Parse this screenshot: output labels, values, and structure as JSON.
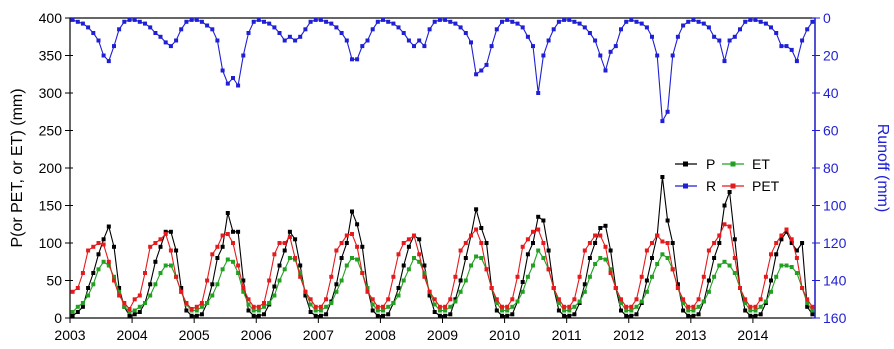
{
  "chart_data": {
    "type": "line",
    "x_start": "2003-01",
    "x_ticks": [
      "2003",
      "2004",
      "2005",
      "2006",
      "2007",
      "2008",
      "2009",
      "2010",
      "2011",
      "2012",
      "2013",
      "2014"
    ],
    "xlim": [
      "2003-01",
      "2014-12"
    ],
    "ylabel_left": "P(or PET, or ET) (mm)",
    "ylabel_right": "Runoff (mm)",
    "ylim_left": [
      0,
      400
    ],
    "yticks_left": [
      "0",
      "50",
      "100",
      "150",
      "200",
      "250",
      "300",
      "350",
      "400"
    ],
    "ylim_right": [
      160,
      0
    ],
    "yticks_right": [
      "0",
      "20",
      "40",
      "60",
      "80",
      "100",
      "120",
      "140",
      "160"
    ],
    "legend_position": "right-middle",
    "colors": {
      "axis_right": "#1f1fd6"
    },
    "series": [
      {
        "name": "P",
        "axis": "left",
        "color": "#000000",
        "values": [
          3,
          8,
          15,
          40,
          60,
          85,
          105,
          122,
          95,
          40,
          15,
          3,
          5,
          8,
          20,
          45,
          75,
          95,
          115,
          115,
          90,
          40,
          10,
          3,
          3,
          5,
          20,
          45,
          80,
          95,
          140,
          115,
          115,
          50,
          10,
          3,
          3,
          5,
          18,
          42,
          70,
          90,
          115,
          105,
          70,
          30,
          8,
          3,
          3,
          5,
          22,
          45,
          80,
          100,
          142,
          125,
          95,
          40,
          10,
          3,
          3,
          5,
          20,
          40,
          70,
          95,
          110,
          105,
          70,
          30,
          8,
          3,
          3,
          5,
          25,
          50,
          80,
          110,
          145,
          120,
          100,
          40,
          10,
          3,
          3,
          5,
          22,
          48,
          85,
          100,
          135,
          130,
          90,
          40,
          10,
          3,
          3,
          5,
          20,
          45,
          80,
          100,
          120,
          123,
          90,
          40,
          10,
          3,
          3,
          5,
          20,
          50,
          80,
          110,
          188,
          130,
          100,
          45,
          10,
          3,
          3,
          5,
          22,
          50,
          80,
          100,
          150,
          168,
          105,
          40,
          10,
          3,
          3,
          5,
          20,
          50,
          85,
          105,
          115,
          100,
          90,
          100,
          15,
          5
        ]
      },
      {
        "name": "ET",
        "axis": "left",
        "color": "#22a022",
        "values": [
          8,
          15,
          20,
          30,
          45,
          65,
          75,
          70,
          55,
          35,
          15,
          8,
          10,
          15,
          20,
          30,
          45,
          60,
          70,
          70,
          55,
          35,
          18,
          10,
          10,
          15,
          20,
          30,
          45,
          65,
          78,
          75,
          60,
          35,
          18,
          10,
          10,
          15,
          20,
          30,
          50,
          65,
          80,
          78,
          60,
          35,
          18,
          10,
          10,
          15,
          20,
          35,
          50,
          70,
          80,
          78,
          60,
          40,
          18,
          10,
          10,
          15,
          20,
          30,
          50,
          65,
          80,
          75,
          60,
          35,
          18,
          10,
          10,
          15,
          22,
          35,
          50,
          70,
          82,
          80,
          65,
          40,
          20,
          10,
          10,
          15,
          22,
          35,
          55,
          70,
          90,
          80,
          65,
          40,
          20,
          10,
          10,
          15,
          22,
          35,
          55,
          72,
          80,
          78,
          65,
          40,
          20,
          10,
          10,
          15,
          22,
          35,
          55,
          72,
          85,
          80,
          65,
          40,
          20,
          10,
          10,
          15,
          22,
          35,
          55,
          70,
          75,
          70,
          60,
          40,
          20,
          10,
          10,
          15,
          22,
          35,
          55,
          70,
          70,
          68,
          60,
          40,
          20,
          10
        ]
      },
      {
        "name": "R",
        "axis": "right",
        "color": "#1f1fd6",
        "values": [
          1,
          2,
          3,
          5,
          8,
          12,
          20,
          23,
          15,
          6,
          2,
          1,
          1,
          2,
          3,
          5,
          8,
          10,
          13,
          15,
          12,
          6,
          2,
          1,
          1,
          2,
          4,
          6,
          12,
          28,
          35,
          32,
          36,
          20,
          8,
          2,
          1,
          2,
          3,
          5,
          8,
          12,
          10,
          12,
          10,
          6,
          2,
          1,
          1,
          2,
          3,
          5,
          8,
          12,
          22,
          22,
          15,
          12,
          6,
          2,
          1,
          2,
          3,
          5,
          8,
          12,
          15,
          12,
          15,
          6,
          2,
          1,
          1,
          2,
          3,
          5,
          8,
          13,
          30,
          28,
          25,
          15,
          6,
          2,
          1,
          2,
          3,
          5,
          10,
          15,
          40,
          20,
          12,
          6,
          2,
          1,
          1,
          2,
          3,
          5,
          8,
          12,
          20,
          28,
          18,
          15,
          6,
          2,
          1,
          2,
          3,
          5,
          10,
          20,
          55,
          50,
          20,
          10,
          4,
          2,
          1,
          2,
          3,
          5,
          10,
          12,
          23,
          12,
          10,
          6,
          2,
          1,
          1,
          2,
          3,
          5,
          8,
          15,
          15,
          17,
          23,
          12,
          6,
          2
        ]
      },
      {
        "name": "PET",
        "axis": "left",
        "color": "#e41a1c",
        "values": [
          35,
          40,
          60,
          90,
          95,
          100,
          98,
          75,
          50,
          30,
          20,
          12,
          25,
          30,
          60,
          95,
          100,
          105,
          112,
          90,
          55,
          35,
          20,
          12,
          15,
          20,
          50,
          85,
          95,
          110,
          112,
          100,
          70,
          40,
          25,
          15,
          15,
          20,
          50,
          85,
          100,
          100,
          108,
          80,
          55,
          35,
          25,
          15,
          15,
          25,
          55,
          90,
          100,
          110,
          112,
          95,
          60,
          35,
          25,
          15,
          15,
          25,
          55,
          85,
          100,
          105,
          110,
          85,
          55,
          35,
          25,
          15,
          15,
          25,
          55,
          90,
          100,
          110,
          118,
          100,
          65,
          40,
          25,
          15,
          15,
          25,
          55,
          95,
          105,
          115,
          118,
          100,
          65,
          40,
          25,
          15,
          15,
          25,
          55,
          90,
          100,
          110,
          110,
          95,
          60,
          40,
          25,
          15,
          15,
          25,
          55,
          90,
          100,
          110,
          102,
          100,
          65,
          40,
          25,
          15,
          15,
          25,
          55,
          90,
          100,
          110,
          125,
          122,
          80,
          40,
          25,
          15,
          15,
          25,
          55,
          85,
          100,
          110,
          118,
          105,
          80,
          40,
          25,
          15
        ]
      }
    ]
  }
}
